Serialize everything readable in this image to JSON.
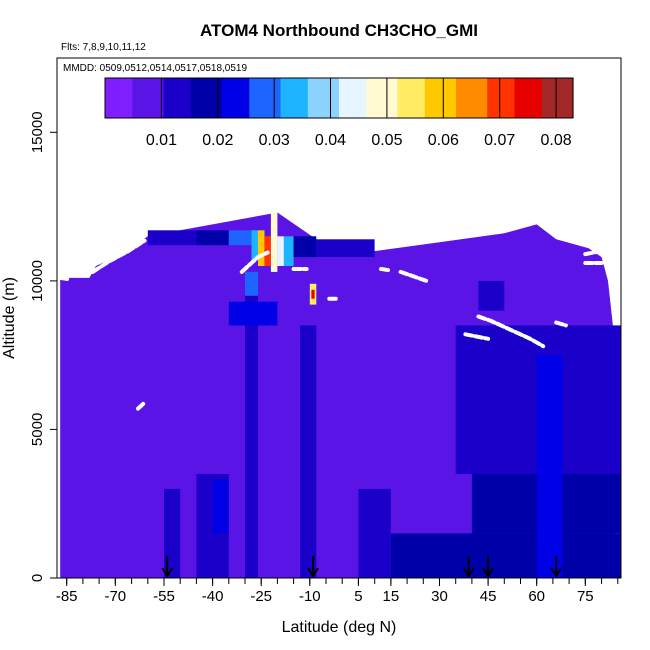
{
  "chart_data": {
    "type": "heatmap",
    "title": "ATOM4 Northbound CH3CHO_GMI",
    "subtitle_flights": "Flts: 7,8,9,10,11,12",
    "subtitle_dates": "MMDD: 0509,0512,0514,0517,0518,0519",
    "xlabel": "Latitude (deg N)",
    "ylabel": "Altitude (m)",
    "xlim": [
      -88,
      86
    ],
    "ylim": [
      0,
      17500
    ],
    "x_ticks": [
      -85,
      -70,
      -55,
      -40,
      -25,
      -10,
      5,
      15,
      30,
      45,
      60,
      75
    ],
    "x_tick_labels": [
      "-85",
      "-70",
      "-55",
      "-40",
      "-25",
      "-10",
      "5",
      "15",
      "30",
      "45",
      "60",
      "75"
    ],
    "x_minor_step": 5,
    "y_ticks": [
      0,
      5000,
      10000,
      15000
    ],
    "y_tick_labels": [
      "0",
      "5000",
      "10000",
      "15000"
    ],
    "colorbar": {
      "range": [
        0,
        0.083
      ],
      "ticks": [
        0.01,
        0.02,
        0.03,
        0.04,
        0.05,
        0.06,
        0.07,
        0.08
      ],
      "tick_labels": [
        "0.01",
        "0.02",
        "0.03",
        "0.04",
        "0.05",
        "0.06",
        "0.07",
        "0.08"
      ],
      "colors": [
        "#7f1fff",
        "#5a14e6",
        "#1a00c8",
        "#0000a8",
        "#0000e6",
        "#1e64ff",
        "#1eb4ff",
        "#8cd2ff",
        "#e6f5ff",
        "#fffad2",
        "#ffeb64",
        "#ffc800",
        "#ff8c00",
        "#ff3200",
        "#e60000",
        "#a52828"
      ]
    },
    "arrow_latitudes": [
      -54,
      -9,
      39,
      45,
      66
    ],
    "background_value": 0.006,
    "patches": [
      {
        "lat": [
          -30,
          -26
        ],
        "alt": [
          0,
          9500
        ],
        "value": 0.013
      },
      {
        "lat": [
          -30,
          -26
        ],
        "alt": [
          9500,
          10300
        ],
        "value": 0.028
      },
      {
        "lat": [
          -45,
          -35
        ],
        "alt": [
          0,
          3500
        ],
        "value": 0.012
      },
      {
        "lat": [
          -40,
          -35
        ],
        "alt": [
          1500,
          3300
        ],
        "value": 0.025
      },
      {
        "lat": [
          -55,
          -50
        ],
        "alt": [
          0,
          3000
        ],
        "value": 0.012
      },
      {
        "lat": [
          -13,
          -8
        ],
        "alt": [
          0,
          8500
        ],
        "value": 0.011
      },
      {
        "lat": [
          -10,
          -8
        ],
        "alt": [
          9200,
          9900
        ],
        "value": 0.052
      },
      {
        "lat": [
          -9.5,
          -8.5
        ],
        "alt": [
          9400,
          9700
        ],
        "value": 0.073
      },
      {
        "lat": [
          -35,
          -20
        ],
        "alt": [
          8500,
          9300
        ],
        "value": 0.022
      },
      {
        "lat": [
          5,
          15
        ],
        "alt": [
          0,
          3000
        ],
        "value": 0.011
      },
      {
        "lat": [
          15,
          86
        ],
        "alt": [
          0,
          1500
        ],
        "value": 0.017
      },
      {
        "lat": [
          40,
          86
        ],
        "alt": [
          1500,
          3500
        ],
        "value": 0.016
      },
      {
        "lat": [
          35,
          86
        ],
        "alt": [
          3500,
          8500
        ],
        "value": 0.012
      },
      {
        "lat": [
          42,
          50
        ],
        "alt": [
          9000,
          10000
        ],
        "value": 0.011
      },
      {
        "lat": [
          60,
          68
        ],
        "alt": [
          0,
          7500
        ],
        "value": 0.023
      },
      {
        "lat": [
          -60,
          -45
        ],
        "alt": [
          11200,
          11700
        ],
        "value": 0.014
      },
      {
        "lat": [
          -45,
          -35
        ],
        "alt": [
          11200,
          11700
        ],
        "value": 0.02
      },
      {
        "lat": [
          -35,
          -28
        ],
        "alt": [
          11200,
          11700
        ],
        "value": 0.026
      },
      {
        "lat": [
          -28,
          -26
        ],
        "alt": [
          10700,
          11700
        ],
        "value": 0.036
      },
      {
        "lat": [
          -26,
          -24
        ],
        "alt": [
          10500,
          11700
        ],
        "value": 0.062
      },
      {
        "lat": [
          -24,
          -22
        ],
        "alt": [
          10500,
          11500
        ],
        "value": 0.072
      },
      {
        "lat": [
          -22,
          -20
        ],
        "alt": [
          10300,
          12300
        ],
        "value": 0.048
      },
      {
        "lat": [
          -20,
          -18
        ],
        "alt": [
          10500,
          11500
        ],
        "value": 0.045
      },
      {
        "lat": [
          -18,
          -15
        ],
        "alt": [
          10500,
          11500
        ],
        "value": 0.032
      },
      {
        "lat": [
          -15,
          -8
        ],
        "alt": [
          10800,
          11500
        ],
        "value": 0.018
      },
      {
        "lat": [
          -8,
          10
        ],
        "alt": [
          10800,
          11400
        ],
        "value": 0.012
      }
    ],
    "flight_track_segments": [
      [
        [
          -87,
          10100
        ],
        [
          -84,
          10050
        ]
      ],
      [
        [
          -77,
          10300
        ],
        [
          -72,
          10650
        ],
        [
          -66,
          11000
        ],
        [
          -61,
          11350
        ]
      ],
      [
        [
          -31,
          10300
        ],
        [
          -29,
          10500
        ],
        [
          -26,
          10800
        ],
        [
          -23,
          10950
        ]
      ],
      [
        [
          -15,
          10400
        ],
        [
          -11,
          10400
        ]
      ],
      [
        [
          -4,
          9400
        ],
        [
          -2,
          9400
        ]
      ],
      [
        [
          12,
          10400
        ],
        [
          15,
          10350
        ]
      ],
      [
        [
          18,
          10300
        ],
        [
          22,
          10150
        ],
        [
          26,
          10000
        ]
      ],
      [
        [
          42,
          8800
        ],
        [
          46,
          8650
        ],
        [
          52,
          8350
        ],
        [
          58,
          8050
        ],
        [
          62,
          7800
        ]
      ],
      [
        [
          38,
          8200
        ],
        [
          45,
          8050
        ]
      ],
      [
        [
          66,
          8600
        ],
        [
          69,
          8500
        ]
      ],
      [
        [
          75,
          10600
        ],
        [
          80,
          10600
        ]
      ],
      [
        [
          75,
          10900
        ],
        [
          80,
          11000
        ]
      ],
      [
        [
          -63,
          5700
        ],
        [
          -61,
          5900
        ]
      ]
    ]
  }
}
